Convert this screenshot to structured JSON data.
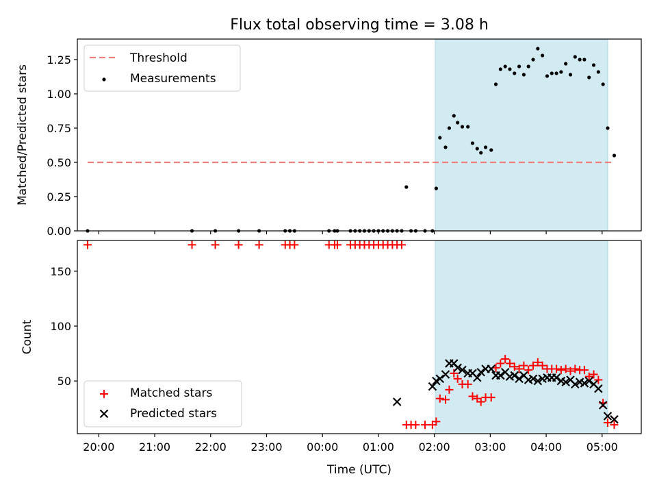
{
  "chart_data": [
    {
      "type": "scatter",
      "title": "Flux total observing time = 3.08 h",
      "ylabel": "Matched/Predicted stars",
      "xlabel": "",
      "xlim": [
        "19:37",
        "05:42"
      ],
      "ylim": [
        0,
        1.4
      ],
      "grid": false,
      "legend_position": "upper-left",
      "xticks": [
        "20:00",
        "21:00",
        "22:00",
        "23:00",
        "00:00",
        "01:00",
        "02:00",
        "03:00",
        "04:00",
        "05:00"
      ],
      "yticks": [
        "0.00",
        "0.25",
        "0.50",
        "0.75",
        "1.00",
        "1.25"
      ],
      "shaded_region": {
        "x": [
          "02:01",
          "05:06"
        ],
        "color": "#add8e6"
      },
      "threshold": {
        "name": "Threshold",
        "value": 0.5,
        "x": [
          "19:48",
          "05:13"
        ],
        "color": "#f08080",
        "style": "dashed"
      },
      "series": [
        {
          "name": "Measurements",
          "color": "#000000",
          "marker": "dot",
          "x": [
            "19:48",
            "21:40",
            "22:05",
            "22:30",
            "22:52",
            "23:20",
            "23:25",
            "23:30",
            "24:07",
            "24:13",
            "24:16",
            "24:30",
            "24:35",
            "24:40",
            "24:45",
            "24:50",
            "24:55",
            "25:00",
            "25:05",
            "25:10",
            "25:15",
            "25:20",
            "25:25",
            "25:30",
            "25:35",
            "25:40",
            "25:50",
            "25:58",
            "26:02",
            "26:06",
            "26:12",
            "26:16",
            "26:21",
            "26:25",
            "26:30",
            "26:36",
            "26:41",
            "26:46",
            "26:50",
            "26:55",
            "27:01",
            "27:06",
            "27:11",
            "27:16",
            "27:21",
            "27:26",
            "27:31",
            "27:36",
            "27:41",
            "27:46",
            "27:51",
            "27:56",
            "28:01",
            "28:06",
            "28:11",
            "28:16",
            "28:21",
            "28:26",
            "28:31",
            "28:36",
            "28:41",
            "28:46",
            "28:51",
            "28:56",
            "29:01",
            "29:06",
            "29:13"
          ],
          "y": [
            0,
            0,
            0,
            0,
            0,
            0,
            0,
            0,
            0,
            0,
            0,
            0,
            0,
            0,
            0,
            0,
            0,
            0,
            0,
            0,
            0,
            0,
            0,
            0.32,
            0,
            0,
            0,
            0,
            0.31,
            0.68,
            0.61,
            0.75,
            0.84,
            0.79,
            0.76,
            0.76,
            0.64,
            0.6,
            0.57,
            0.61,
            0.59,
            1.07,
            1.18,
            1.2,
            1.18,
            1.15,
            1.2,
            1.14,
            1.2,
            1.25,
            1.33,
            1.28,
            1.13,
            1.15,
            1.15,
            1.16,
            1.22,
            1.14,
            1.27,
            1.25,
            1.25,
            1.12,
            1.21,
            1.16,
            1.07,
            0.75,
            0.55
          ]
        }
      ]
    },
    {
      "type": "scatter",
      "title": "",
      "ylabel": "Count",
      "xlabel": "Time (UTC)",
      "xlim": [
        "19:37",
        "05:42"
      ],
      "ylim": [
        2,
        178
      ],
      "grid": false,
      "legend_position": "lower-left",
      "xticks": [
        "20:00",
        "21:00",
        "22:00",
        "23:00",
        "00:00",
        "01:00",
        "02:00",
        "03:00",
        "04:00",
        "05:00"
      ],
      "yticks": [
        "50",
        "100",
        "150"
      ],
      "shaded_region": {
        "x": [
          "02:01",
          "05:06"
        ],
        "color": "#add8e6"
      },
      "series": [
        {
          "name": "Matched stars",
          "color": "#ff0000",
          "marker": "plus",
          "x": [
            "19:48",
            "21:40",
            "22:05",
            "22:30",
            "22:52",
            "23:20",
            "23:25",
            "23:30",
            "24:07",
            "24:13",
            "24:16",
            "24:30",
            "24:35",
            "24:40",
            "24:45",
            "24:50",
            "24:55",
            "25:00",
            "25:05",
            "25:10",
            "25:15",
            "25:20",
            "25:25",
            "25:30",
            "25:35",
            "25:40",
            "25:50",
            "25:58",
            "26:02",
            "26:06",
            "26:12",
            "26:16",
            "26:21",
            "26:25",
            "26:30",
            "26:36",
            "26:41",
            "26:46",
            "26:50",
            "26:55",
            "27:01",
            "27:06",
            "27:11",
            "27:16",
            "27:21",
            "27:26",
            "27:31",
            "27:36",
            "27:41",
            "27:46",
            "27:51",
            "27:56",
            "28:01",
            "28:06",
            "28:11",
            "28:16",
            "28:21",
            "28:26",
            "28:31",
            "28:36",
            "28:41",
            "28:46",
            "28:51",
            "28:56",
            "29:01",
            "29:06",
            "29:13"
          ],
          "y": [
            174,
            174,
            174,
            174,
            174,
            174,
            174,
            174,
            174,
            174,
            174,
            174,
            174,
            174,
            174,
            174,
            174,
            174,
            174,
            174,
            174,
            174,
            174,
            10,
            10,
            10,
            10,
            10,
            13,
            34,
            33,
            42,
            57,
            52,
            47,
            47,
            36,
            34,
            31,
            35,
            35,
            62,
            66,
            70,
            66,
            63,
            61,
            64,
            60,
            64,
            67,
            64,
            61,
            61,
            61,
            60,
            61,
            59,
            61,
            60,
            60,
            54,
            56,
            51,
            30,
            12,
            10
          ]
        },
        {
          "name": "Predicted stars",
          "color": "#000000",
          "marker": "x",
          "x": [
            "25:20",
            "25:58",
            "26:02",
            "26:06",
            "26:12",
            "26:16",
            "26:21",
            "26:25",
            "26:30",
            "26:36",
            "26:41",
            "26:46",
            "26:50",
            "26:55",
            "27:01",
            "27:06",
            "27:11",
            "27:16",
            "27:21",
            "27:26",
            "27:31",
            "27:36",
            "27:41",
            "27:46",
            "27:51",
            "27:56",
            "28:01",
            "28:06",
            "28:11",
            "28:16",
            "28:21",
            "28:26",
            "28:31",
            "28:36",
            "28:41",
            "28:46",
            "28:51",
            "28:56",
            "29:01",
            "29:06",
            "29:13"
          ],
          "y": [
            31,
            45,
            50,
            52,
            56,
            66,
            66,
            62,
            60,
            57,
            57,
            53,
            58,
            61,
            61,
            55,
            55,
            58,
            54,
            55,
            52,
            55,
            51,
            52,
            50,
            52,
            53,
            53,
            53,
            50,
            49,
            51,
            47,
            49,
            48,
            50,
            47,
            43,
            28,
            18,
            15
          ]
        }
      ]
    }
  ]
}
